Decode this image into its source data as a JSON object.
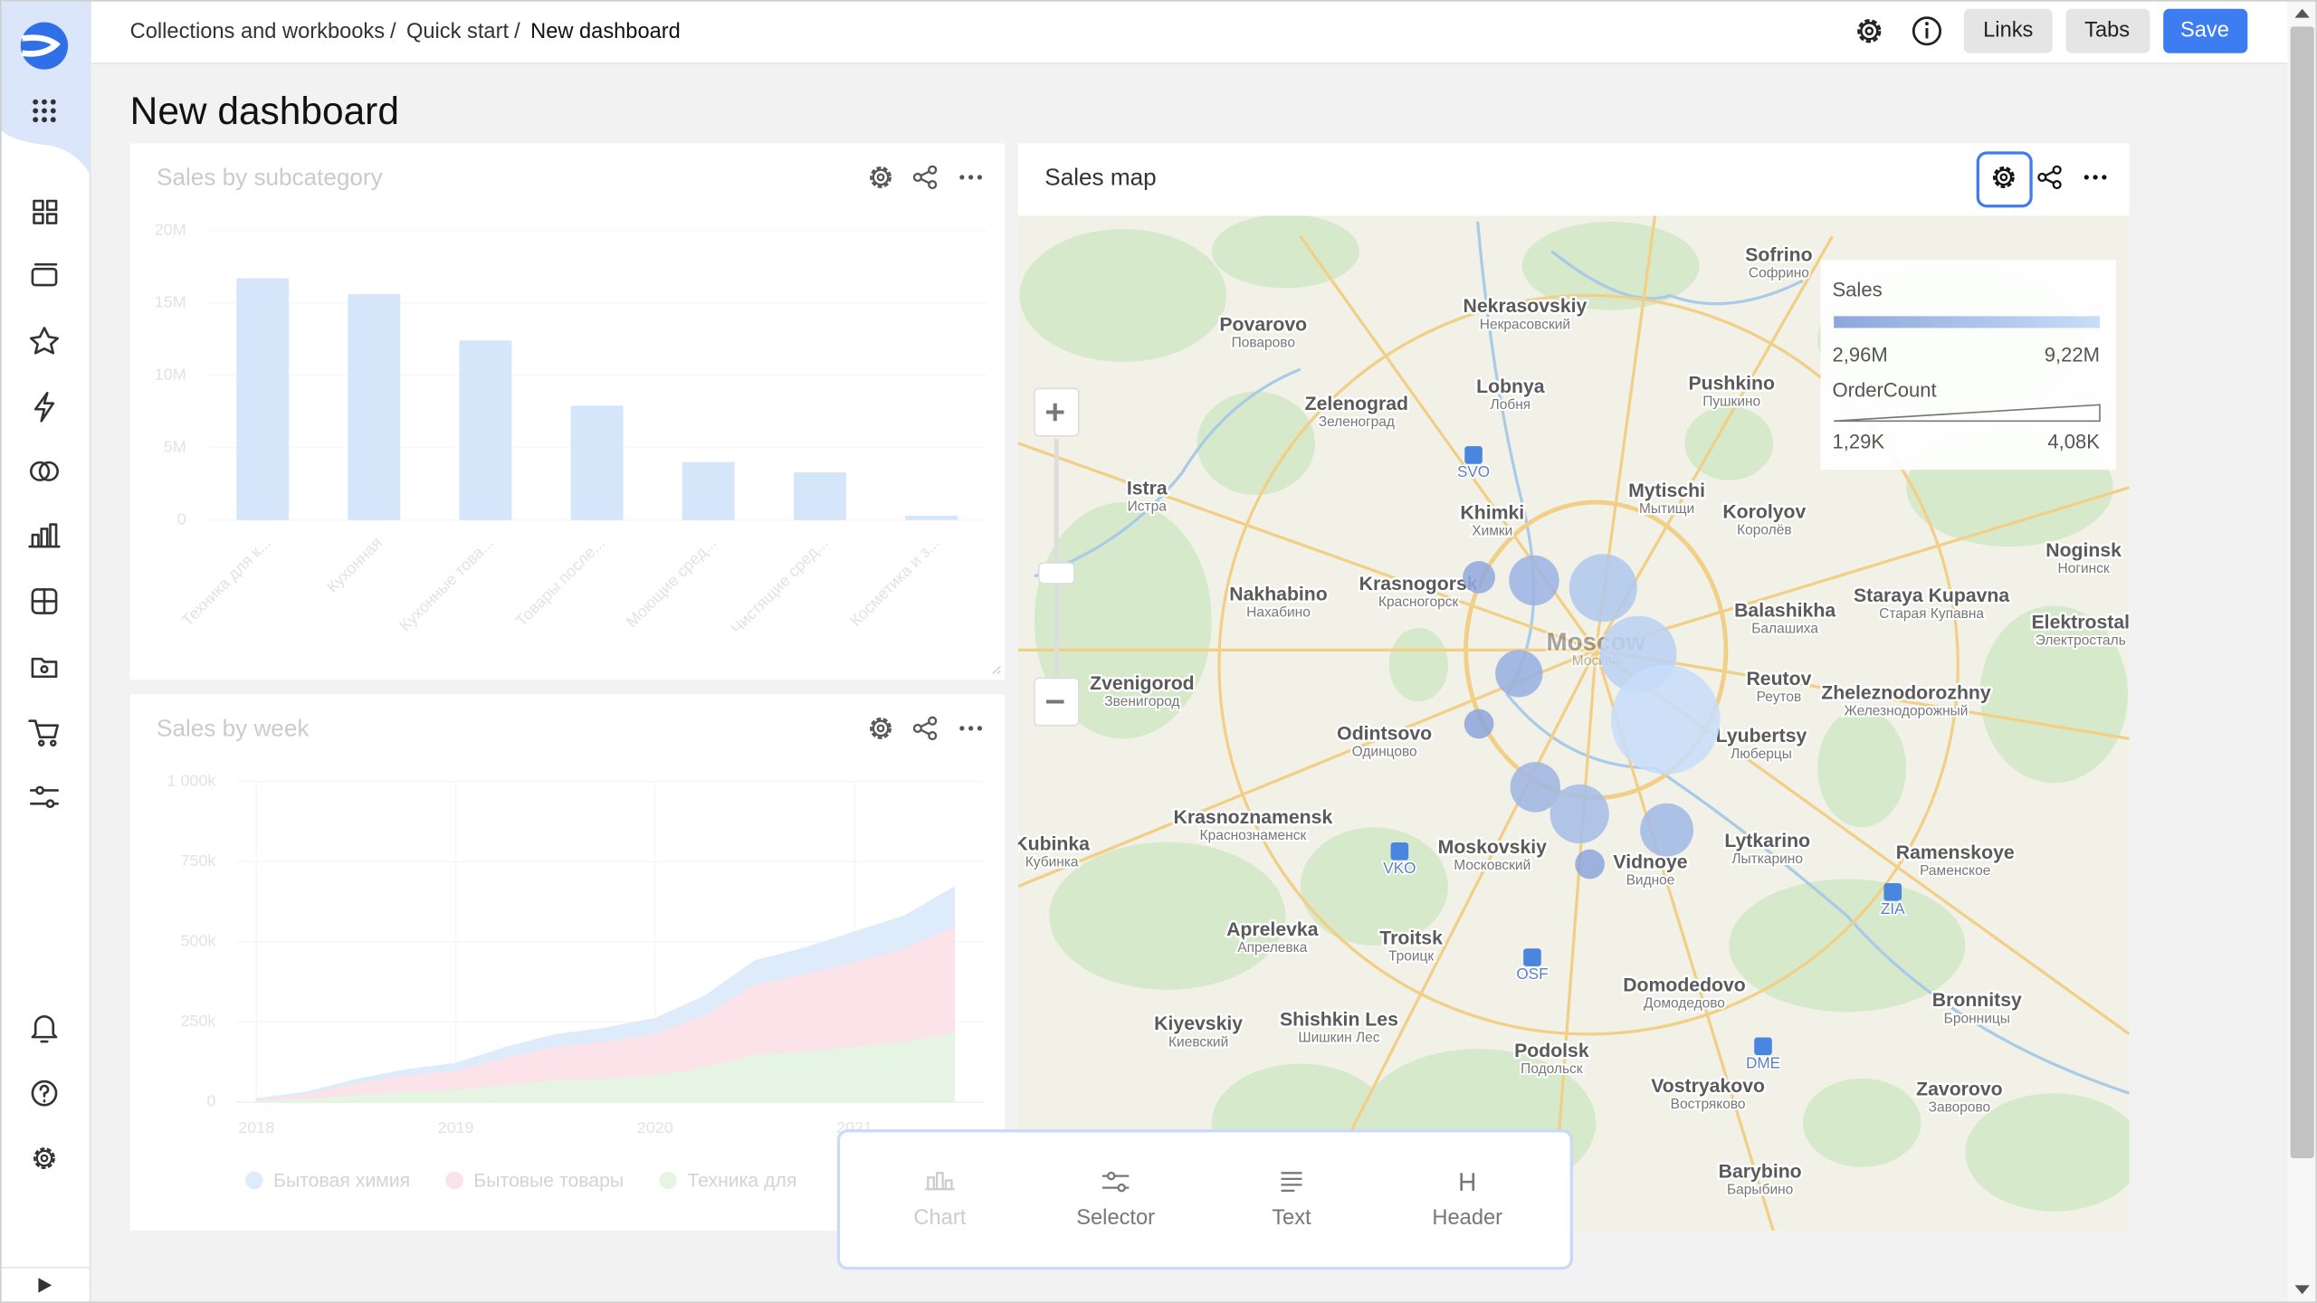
{
  "breadcrumbs": [
    "Collections and workbooks",
    "Quick start",
    "New dashboard"
  ],
  "breadcrumb_separator": "/",
  "buttons": [
    "Links",
    "Tabs",
    "Save"
  ],
  "title": "New dashboard",
  "add_panel": [
    "Chart",
    "Selector",
    "Text",
    "Header"
  ],
  "chart_data": [
    {
      "type": "bar",
      "title": "Sales by subcategory",
      "categories": [
        "Техника для к...",
        "Кухонная",
        "Кухонные това...",
        "Товары после...",
        "Моющие сред...",
        "Чистящие сред...",
        "Косметика и з..."
      ],
      "values": [
        16700000,
        15600000,
        12400000,
        7900000,
        4000000,
        3300000,
        300000
      ],
      "color": "#6aa9ef",
      "ylim": [
        0,
        20000000
      ],
      "yticks": [
        0,
        {
          "value": 5000000,
          "label": "5M"
        },
        {
          "value": 10000000,
          "label": "10M"
        },
        {
          "value": 15000000,
          "label": "15M"
        },
        {
          "value": 20000000,
          "label": "20M"
        }
      ],
      "grid": true
    },
    {
      "type": "area",
      "title": "Sales by week",
      "stacked": true,
      "x": [
        2018,
        2018.25,
        2018.5,
        2018.75,
        2019,
        2019.25,
        2019.5,
        2019.75,
        2020,
        2020.25,
        2020.5,
        2020.75,
        2021,
        2021.25,
        2021.5
      ],
      "series": [
        {
          "name": "Бытовая химия",
          "color": "#8ab8f2",
          "values": [
            1000,
            4000,
            10000,
            15000,
            20000,
            30000,
            35000,
            40000,
            45000,
            55000,
            70000,
            80000,
            90000,
            100000,
            120000
          ]
        },
        {
          "name": "Бытовые товары",
          "color": "#f59ab2",
          "values": [
            4000,
            14000,
            35000,
            50000,
            60000,
            85000,
            105000,
            115000,
            130000,
            165000,
            220000,
            240000,
            265000,
            290000,
            330000
          ]
        },
        {
          "name": "Техника для",
          "color": "#a6da9c",
          "values": [
            5000,
            12000,
            25000,
            35000,
            40000,
            55000,
            70000,
            75000,
            85000,
            110000,
            150000,
            160000,
            175000,
            190000,
            220000
          ]
        }
      ],
      "xlim": [
        2017.9,
        2021.65
      ],
      "xticks": [
        2018,
        2019,
        2020,
        2021
      ],
      "ylim": [
        0,
        1000000
      ],
      "yticks": [
        0,
        {
          "value": 250000,
          "label": "250k"
        },
        {
          "value": 500000,
          "label": "500k"
        },
        {
          "value": 750000,
          "label": "750k"
        },
        {
          "value": 1000000,
          "label": "1 000k"
        }
      ],
      "grid": true
    },
    {
      "type": "map",
      "title": "Sales map",
      "color_legend": {
        "title": "Sales",
        "min": {
          "value": 2960000,
          "label": "2,96M"
        },
        "max": {
          "value": 9220000,
          "label": "9,22M"
        },
        "colors": [
          "#8ea6da",
          "#c7ddf8"
        ]
      },
      "size_legend": {
        "title": "OrderCount",
        "min": {
          "value": 1290,
          "label": "1,29K"
        },
        "max": {
          "value": 4080,
          "label": "4,08K"
        }
      },
      "points": [
        {
          "lat": 55.818,
          "lon": 37.427,
          "sales": 3400000,
          "orders": 1390
        },
        {
          "lat": 55.815,
          "lon": 37.518,
          "sales": 4600000,
          "orders": 2010
        },
        {
          "lat": 55.808,
          "lon": 37.632,
          "sales": 6800000,
          "orders": 2630
        },
        {
          "lat": 55.746,
          "lon": 37.69,
          "sales": 7900000,
          "orders": 2940
        },
        {
          "lat": 55.728,
          "lon": 37.493,
          "sales": 4100000,
          "orders": 1910
        },
        {
          "lat": 55.685,
          "lon": 37.735,
          "sales": 9220000,
          "orders": 4080
        },
        {
          "lat": 55.681,
          "lon": 37.427,
          "sales": 2960000,
          "orders": 1290
        },
        {
          "lat": 55.622,
          "lon": 37.52,
          "sales": 4800000,
          "orders": 2010
        },
        {
          "lat": 55.597,
          "lon": 37.593,
          "sales": 5600000,
          "orders": 2320
        },
        {
          "lat": 55.582,
          "lon": 37.737,
          "sales": 5200000,
          "orders": 2120
        },
        {
          "lat": 55.55,
          "lon": 37.61,
          "sales": 3100000,
          "orders": 1290
        }
      ],
      "labels": [
        {
          "name": "Sofrino",
          "local": "Софрино",
          "lat": 56.118,
          "lon": 37.922
        },
        {
          "name": "Nekrasovskiy",
          "local": "Некрасовский",
          "lat": 56.07,
          "lon": 37.503
        },
        {
          "name": "Povarovo",
          "local": "Поварово",
          "lat": 56.053,
          "lon": 37.071
        },
        {
          "name": "Zelenograd",
          "local": "Зеленоград",
          "lat": 55.979,
          "lon": 37.225
        },
        {
          "name": "Lobnya",
          "local": "Лобня",
          "lat": 55.995,
          "lon": 37.479
        },
        {
          "name": "Pushkino",
          "local": "Пушкино",
          "lat": 55.998,
          "lon": 37.844
        },
        {
          "name": "Mytischi",
          "local": "Мытищи",
          "lat": 55.898,
          "lon": 37.737
        },
        {
          "name": "Korolyov",
          "local": "Королёв",
          "lat": 55.878,
          "lon": 37.898
        },
        {
          "name": "Khimki",
          "local": "Химки",
          "lat": 55.877,
          "lon": 37.449
        },
        {
          "name": "Istra",
          "local": "Истра",
          "lat": 55.9,
          "lon": 36.879
        },
        {
          "name": "Noginsk",
          "local": "Ногинск",
          "lat": 55.842,
          "lon": 38.425
        },
        {
          "name": "Krasnogorsk",
          "local": "Красногорск",
          "lat": 55.811,
          "lon": 37.327
        },
        {
          "name": "Nakhabino",
          "local": "Нахабино",
          "lat": 55.801,
          "lon": 37.096
        },
        {
          "name": "Balashikha",
          "local": "Балашиха",
          "lat": 55.786,
          "lon": 37.932
        },
        {
          "name": "Staraya Kupavna",
          "local": "Старая Купавна",
          "lat": 55.8,
          "lon": 38.174
        },
        {
          "name": "Elektrostal",
          "local": "Электросталь",
          "lat": 55.775,
          "lon": 38.42
        },
        {
          "name": "Moscow",
          "local": "Москва",
          "lat": 55.756,
          "lon": 37.62
        },
        {
          "name": "Zvenigorod",
          "local": "Звенигород",
          "lat": 55.718,
          "lon": 36.871
        },
        {
          "name": "Reutov",
          "local": "Реутов",
          "lat": 55.722,
          "lon": 37.922
        },
        {
          "name": "Zheleznodorozhny",
          "local": "Железнодорожный",
          "lat": 55.709,
          "lon": 38.132
        },
        {
          "name": "Odintsovo",
          "local": "Одинцово",
          "lat": 55.671,
          "lon": 37.271
        },
        {
          "name": "Lyubertsy",
          "local": "Люберцы",
          "lat": 55.669,
          "lon": 37.893
        },
        {
          "name": "Krasnoznamensk",
          "local": "Краснознаменск",
          "lat": 55.593,
          "lon": 37.054
        },
        {
          "name": "Kubinka",
          "local": "Кубинка",
          "lat": 55.568,
          "lon": 36.722
        },
        {
          "name": "Moskovskiy",
          "local": "Московский",
          "lat": 55.565,
          "lon": 37.449
        },
        {
          "name": "Vidnoye",
          "local": "Видное",
          "lat": 55.551,
          "lon": 37.71
        },
        {
          "name": "Lytkarino",
          "local": "Лыткарино",
          "lat": 55.571,
          "lon": 37.903
        },
        {
          "name": "Ramenskoye",
          "local": "Раменское",
          "lat": 55.56,
          "lon": 38.213
        },
        {
          "name": "Aprelevka",
          "local": "Апрелевка",
          "lat": 55.488,
          "lon": 37.086
        },
        {
          "name": "Troitsk",
          "local": "Троицк",
          "lat": 55.48,
          "lon": 37.315
        },
        {
          "name": "Domodedovo",
          "local": "Домодедово",
          "lat": 55.436,
          "lon": 37.766
        },
        {
          "name": "Bronnitsy",
          "local": "Бронницы",
          "lat": 55.422,
          "lon": 38.249
        },
        {
          "name": "Kiyevskiy",
          "local": "Киевский",
          "lat": 55.4,
          "lon": 36.964
        },
        {
          "name": "Shishkin Les",
          "local": "Шишкин Лес",
          "lat": 55.404,
          "lon": 37.196
        },
        {
          "name": "Podolsk",
          "local": "Подольск",
          "lat": 55.375,
          "lon": 37.547
        },
        {
          "name": "Vostryakovo",
          "local": "Востряково",
          "lat": 55.342,
          "lon": 37.805
        },
        {
          "name": "Zavorovo",
          "local": "Заворово",
          "lat": 55.339,
          "lon": 38.22
        },
        {
          "name": "Barybino",
          "local": "Барыбино",
          "lat": 55.262,
          "lon": 37.891
        }
      ],
      "airports": [
        {
          "code": "SVO",
          "lat": 55.921,
          "lon": 37.418
        },
        {
          "code": "VKO",
          "lat": 55.551,
          "lon": 37.296
        },
        {
          "code": "OSF",
          "lat": 55.452,
          "lon": 37.515
        },
        {
          "code": "DME",
          "lat": 55.369,
          "lon": 37.896
        },
        {
          "code": "ZIA",
          "lat": 55.513,
          "lon": 38.11
        }
      ]
    }
  ]
}
